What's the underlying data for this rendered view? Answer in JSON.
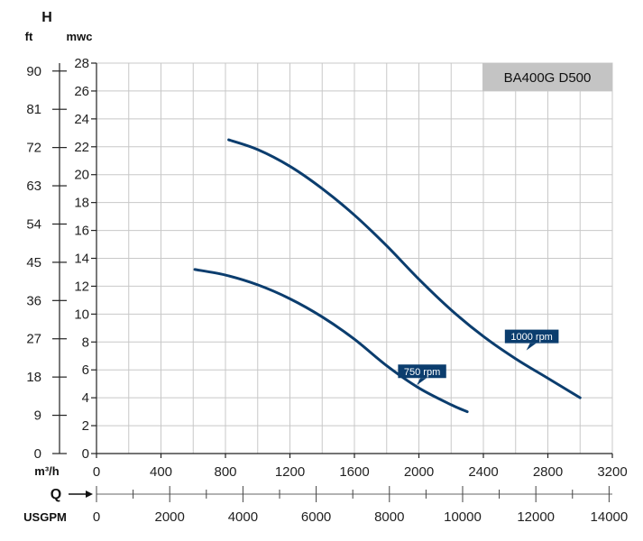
{
  "chart_data": {
    "type": "line",
    "title": "BA400G D500",
    "y_axis_label": "H",
    "y_unit_left": "ft",
    "y_unit_right": "mwc",
    "x_unit": "m³/h",
    "x_axis_label": "Q",
    "x_unit_secondary": "USGPM",
    "ylim": [
      0,
      28
    ],
    "xlim": [
      0,
      3200
    ],
    "y_ticks": [
      "0",
      "2",
      "4",
      "6",
      "8",
      "10",
      "12",
      "14",
      "16",
      "18",
      "20",
      "22",
      "24",
      "26",
      "28"
    ],
    "y_ticks_ft": [
      {
        "label": "0",
        "value": 0
      },
      {
        "label": "9",
        "value": 9
      },
      {
        "label": "18",
        "value": 18
      },
      {
        "label": "27",
        "value": 27
      },
      {
        "label": "36",
        "value": 36
      },
      {
        "label": "45",
        "value": 45
      },
      {
        "label": "54",
        "value": 54
      },
      {
        "label": "63",
        "value": 63
      },
      {
        "label": "72",
        "value": 72
      },
      {
        "label": "81",
        "value": 81
      },
      {
        "label": "90",
        "value": 90
      }
    ],
    "x_ticks": [
      "0",
      "400",
      "800",
      "1200",
      "1600",
      "2000",
      "2400",
      "2800",
      "3200"
    ],
    "x_ticks_usgpm": [
      {
        "label": "0",
        "value": 0
      },
      {
        "label": "2000",
        "value": 2000
      },
      {
        "label": "4000",
        "value": 4000
      },
      {
        "label": "6000",
        "value": 6000
      },
      {
        "label": "8000",
        "value": 8000
      },
      {
        "label": "10000",
        "value": 10000
      },
      {
        "label": "12000",
        "value": 12000
      },
      {
        "label": "14000",
        "value": 14000
      }
    ],
    "grid": true,
    "series": [
      {
        "name": "1000 rpm",
        "color": "#0b3d6e",
        "points": [
          [
            820,
            22.5
          ],
          [
            1000,
            21.8
          ],
          [
            1200,
            20.6
          ],
          [
            1400,
            19.0
          ],
          [
            1600,
            17.1
          ],
          [
            1800,
            14.9
          ],
          [
            2000,
            12.5
          ],
          [
            2200,
            10.3
          ],
          [
            2400,
            8.4
          ],
          [
            2600,
            6.8
          ],
          [
            2800,
            5.4
          ],
          [
            3000,
            4.0
          ]
        ],
        "label_at": [
          2700,
          8.4
        ]
      },
      {
        "name": "750 rpm",
        "color": "#0b3d6e",
        "points": [
          [
            610,
            13.2
          ],
          [
            800,
            12.8
          ],
          [
            1000,
            12.1
          ],
          [
            1200,
            11.1
          ],
          [
            1400,
            9.8
          ],
          [
            1600,
            8.2
          ],
          [
            1800,
            6.3
          ],
          [
            2000,
            4.7
          ],
          [
            2200,
            3.5
          ],
          [
            2300,
            3.0
          ]
        ],
        "label_at": [
          2020,
          5.9
        ]
      }
    ]
  }
}
